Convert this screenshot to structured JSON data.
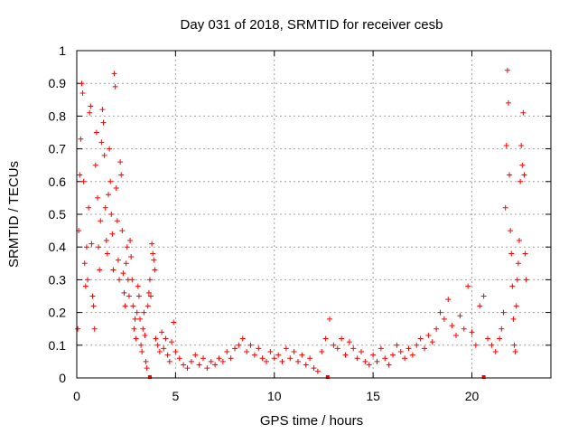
{
  "chart_data": {
    "type": "scatter",
    "title": "Day 031 of 2018, SRMTID for receiver cesb",
    "xlabel": "GPS time / hours",
    "ylabel": "SRMTID / TECUs",
    "xlim": [
      0,
      24
    ],
    "ylim": [
      0,
      1
    ],
    "xticks": [
      0,
      5,
      10,
      15,
      20
    ],
    "xtick_labels": [
      "0",
      "5",
      "10",
      "15",
      "20"
    ],
    "yticks": [
      0,
      0.1,
      0.2,
      0.3,
      0.4,
      0.5,
      0.6,
      0.7,
      0.8,
      0.9,
      1
    ],
    "ytick_labels": [
      "0",
      "0.1",
      "0.2",
      "0.3",
      "0.4",
      "0.5",
      "0.6",
      "0.7",
      "0.8",
      "0.9",
      "1"
    ],
    "grid": true,
    "marker": "+",
    "color": "#ff0000",
    "series": [
      {
        "name": "SRMTID",
        "points": [
          [
            0.05,
            0.15
          ],
          [
            0.1,
            0.45
          ],
          [
            0.15,
            0.62
          ],
          [
            0.2,
            0.73
          ],
          [
            0.25,
            0.9
          ],
          [
            0.3,
            0.87
          ],
          [
            0.35,
            0.6
          ],
          [
            0.4,
            0.35
          ],
          [
            0.45,
            0.28
          ],
          [
            0.5,
            0.4
          ],
          [
            0.55,
            0.3
          ],
          [
            0.6,
            0.52
          ],
          [
            0.65,
            0.81
          ],
          [
            0.7,
            0.83
          ],
          [
            0.75,
            0.41
          ],
          [
            0.8,
            0.25
          ],
          [
            0.85,
            0.22
          ],
          [
            0.9,
            0.15
          ],
          [
            0.95,
            0.65
          ],
          [
            1.0,
            0.75
          ],
          [
            1.05,
            0.55
          ],
          [
            1.1,
            0.4
          ],
          [
            1.15,
            0.33
          ],
          [
            1.2,
            0.48
          ],
          [
            1.25,
            0.72
          ],
          [
            1.3,
            0.82
          ],
          [
            1.35,
            0.78
          ],
          [
            1.4,
            0.68
          ],
          [
            1.45,
            0.52
          ],
          [
            1.5,
            0.42
          ],
          [
            1.55,
            0.38
          ],
          [
            1.6,
            0.56
          ],
          [
            1.65,
            0.7
          ],
          [
            1.7,
            0.6
          ],
          [
            1.75,
            0.5
          ],
          [
            1.8,
            0.44
          ],
          [
            1.85,
            0.33
          ],
          [
            1.9,
            0.93
          ],
          [
            1.95,
            0.89
          ],
          [
            2.0,
            0.58
          ],
          [
            2.05,
            0.48
          ],
          [
            2.1,
            0.36
          ],
          [
            2.15,
            0.3
          ],
          [
            2.2,
            0.66
          ],
          [
            2.25,
            0.62
          ],
          [
            2.3,
            0.45
          ],
          [
            2.35,
            0.32
          ],
          [
            2.4,
            0.26
          ],
          [
            2.45,
            0.22
          ],
          [
            2.5,
            0.35
          ],
          [
            2.55,
            0.4
          ],
          [
            2.6,
            0.3
          ],
          [
            2.65,
            0.25
          ],
          [
            2.7,
            0.42
          ],
          [
            2.75,
            0.37
          ],
          [
            2.8,
            0.3
          ],
          [
            2.85,
            0.22
          ],
          [
            2.9,
            0.15
          ],
          [
            2.95,
            0.18
          ],
          [
            3.0,
            0.12
          ],
          [
            3.05,
            0.2
          ],
          [
            3.1,
            0.28
          ],
          [
            3.15,
            0.25
          ],
          [
            3.2,
            0.18
          ],
          [
            3.25,
            0.1
          ],
          [
            3.3,
            0.08
          ],
          [
            3.35,
            0.15
          ],
          [
            3.4,
            0.2
          ],
          [
            3.45,
            0.13
          ],
          [
            3.5,
            0.05
          ],
          [
            3.55,
            0.03
          ],
          [
            3.6,
            0.22
          ],
          [
            3.65,
            0.26
          ],
          [
            3.7,
            0.3
          ],
          [
            3.75,
            0.25
          ],
          [
            3.8,
            0.41
          ],
          [
            3.85,
            0.38
          ],
          [
            3.9,
            0.36
          ],
          [
            3.95,
            0.33
          ],
          [
            4.0,
            0.12
          ],
          [
            4.1,
            0.1
          ],
          [
            4.2,
            0.08
          ],
          [
            4.3,
            0.14
          ],
          [
            4.4,
            0.09
          ],
          [
            4.5,
            0.12
          ],
          [
            4.6,
            0.07
          ],
          [
            4.7,
            0.05
          ],
          [
            4.8,
            0.11
          ],
          [
            4.9,
            0.17
          ],
          [
            5.0,
            0.08
          ],
          [
            5.2,
            0.06
          ],
          [
            5.4,
            0.04
          ],
          [
            5.6,
            0.03
          ],
          [
            5.8,
            0.05
          ],
          [
            6.0,
            0.07
          ],
          [
            6.2,
            0.04
          ],
          [
            6.4,
            0.06
          ],
          [
            6.6,
            0.03
          ],
          [
            6.8,
            0.05
          ],
          [
            7.0,
            0.04
          ],
          [
            7.2,
            0.06
          ],
          [
            7.4,
            0.05
          ],
          [
            7.6,
            0.08
          ],
          [
            7.8,
            0.06
          ],
          [
            8.0,
            0.09
          ],
          [
            8.2,
            0.1
          ],
          [
            8.4,
            0.12
          ],
          [
            8.6,
            0.08
          ],
          [
            8.8,
            0.1
          ],
          [
            9.0,
            0.07
          ],
          [
            9.2,
            0.09
          ],
          [
            9.4,
            0.06
          ],
          [
            9.6,
            0.05
          ],
          [
            9.8,
            0.08
          ],
          [
            10.0,
            0.06
          ],
          [
            10.2,
            0.07
          ],
          [
            10.4,
            0.05
          ],
          [
            10.6,
            0.09
          ],
          [
            10.8,
            0.06
          ],
          [
            11.0,
            0.08
          ],
          [
            11.2,
            0.05
          ],
          [
            11.4,
            0.07
          ],
          [
            11.6,
            0.04
          ],
          [
            11.8,
            0.06
          ],
          [
            12.0,
            0.03
          ],
          [
            12.2,
            0.02
          ],
          [
            12.4,
            0.08
          ],
          [
            12.6,
            0.12
          ],
          [
            12.8,
            0.18
          ],
          [
            13.0,
            0.1
          ],
          [
            13.2,
            0.09
          ],
          [
            13.4,
            0.12
          ],
          [
            13.6,
            0.07
          ],
          [
            13.8,
            0.11
          ],
          [
            14.0,
            0.09
          ],
          [
            14.2,
            0.06
          ],
          [
            14.4,
            0.08
          ],
          [
            14.6,
            0.05
          ],
          [
            14.8,
            0.04
          ],
          [
            15.0,
            0.07
          ],
          [
            15.2,
            0.05
          ],
          [
            15.4,
            0.09
          ],
          [
            15.6,
            0.06
          ],
          [
            15.8,
            0.04
          ],
          [
            16.0,
            0.07
          ],
          [
            16.2,
            0.1
          ],
          [
            16.4,
            0.08
          ],
          [
            16.6,
            0.06
          ],
          [
            16.8,
            0.09
          ],
          [
            17.0,
            0.07
          ],
          [
            17.2,
            0.1
          ],
          [
            17.4,
            0.12
          ],
          [
            17.6,
            0.09
          ],
          [
            17.8,
            0.13
          ],
          [
            18.0,
            0.11
          ],
          [
            18.2,
            0.15
          ],
          [
            18.4,
            0.2
          ],
          [
            18.6,
            0.18
          ],
          [
            18.8,
            0.24
          ],
          [
            19.0,
            0.16
          ],
          [
            19.2,
            0.13
          ],
          [
            19.4,
            0.19
          ],
          [
            19.6,
            0.15
          ],
          [
            19.8,
            0.28
          ],
          [
            20.0,
            0.14
          ],
          [
            20.2,
            0.1
          ],
          [
            20.4,
            0.22
          ],
          [
            20.6,
            0.25
          ],
          [
            20.8,
            0.12
          ],
          [
            21.0,
            0.1
          ],
          [
            21.2,
            0.08
          ],
          [
            21.4,
            0.12
          ],
          [
            21.5,
            0.15
          ],
          [
            21.6,
            0.2
          ],
          [
            21.7,
            0.52
          ],
          [
            21.75,
            0.71
          ],
          [
            21.8,
            0.94
          ],
          [
            21.85,
            0.84
          ],
          [
            21.9,
            0.62
          ],
          [
            21.95,
            0.45
          ],
          [
            22.0,
            0.38
          ],
          [
            22.05,
            0.28
          ],
          [
            22.1,
            0.18
          ],
          [
            22.15,
            0.1
          ],
          [
            22.2,
            0.08
          ],
          [
            22.25,
            0.22
          ],
          [
            22.3,
            0.3
          ],
          [
            22.35,
            0.35
          ],
          [
            22.4,
            0.42
          ],
          [
            22.45,
            0.6
          ],
          [
            22.5,
            0.71
          ],
          [
            22.55,
            0.65
          ],
          [
            22.6,
            0.81
          ],
          [
            22.65,
            0.62
          ],
          [
            22.7,
            0.38
          ],
          [
            22.75,
            0.3
          ]
        ]
      }
    ],
    "missing_marks_x": [
      3.7,
      12.7,
      20.6
    ]
  }
}
